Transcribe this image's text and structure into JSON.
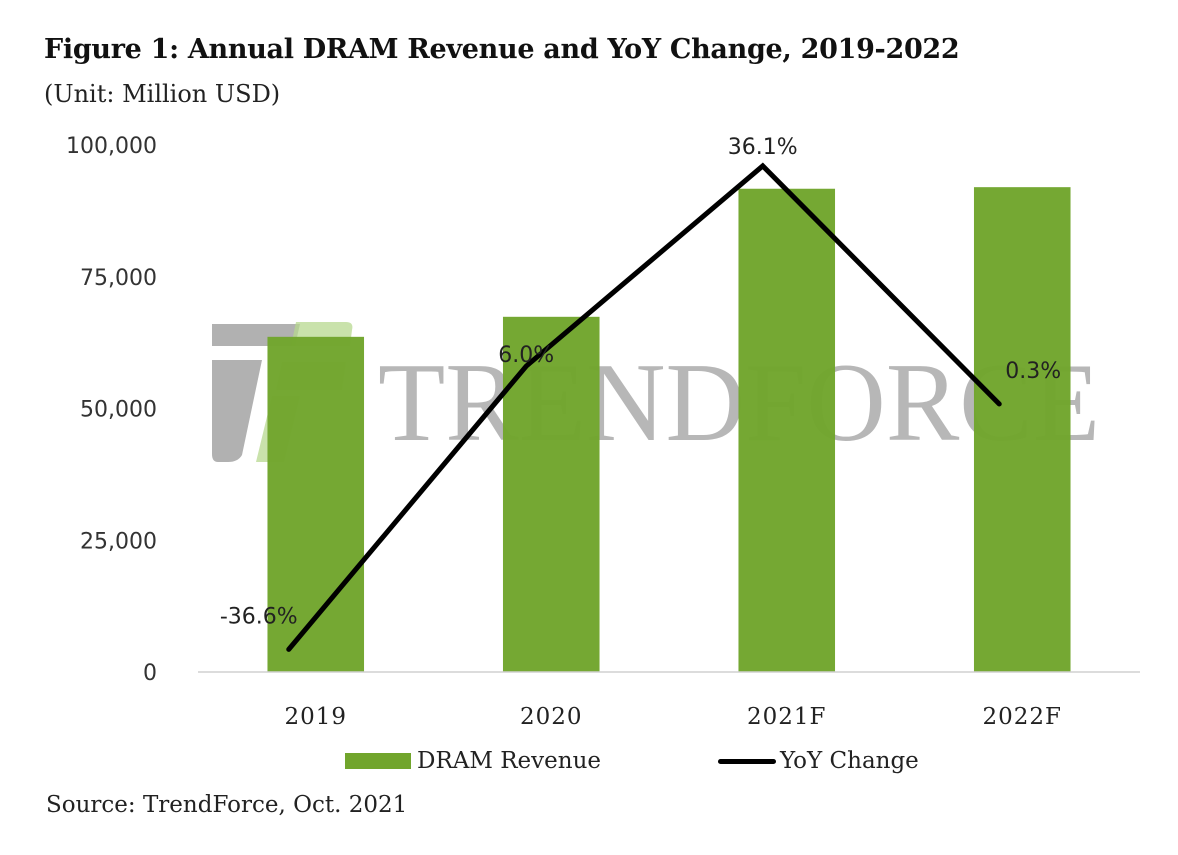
{
  "chart_data": {
    "type": "bar",
    "title": "Figure 1: Annual DRAM Revenue and YoY Change, 2019-2022",
    "subtitle": "(Unit: Million USD)",
    "categories": [
      "2019",
      "2020",
      "2021F",
      "2022F"
    ],
    "series": [
      {
        "name": "DRAM Revenue",
        "type": "bar",
        "axis": "primary",
        "color": "#71a52c",
        "values": [
          63600,
          67400,
          91700,
          92000
        ]
      },
      {
        "name": "YoY Change",
        "type": "line",
        "axis": "secondary",
        "color": "#000000",
        "values": [
          -36.6,
          6.0,
          36.1,
          0.3
        ],
        "data_labels": [
          "-36.6%",
          "6.0%",
          "36.1%",
          "0.3%"
        ]
      }
    ],
    "ylim": [
      0,
      100000
    ],
    "yticks": [
      0,
      25000,
      50000,
      75000,
      100000
    ],
    "ytick_labels": [
      "0",
      "25,000",
      "50,000",
      "75,000",
      "100,000"
    ],
    "y2lim": [
      -40,
      40
    ],
    "y2_visible": false,
    "xlabel": "",
    "ylabel": "",
    "grid": false,
    "legend": {
      "placement": "bottom-center",
      "entries": [
        "DRAM Revenue",
        "YoY Change"
      ]
    },
    "source": "Source: TrendForce, Oct. 2021",
    "watermark": "TRENDFORCE"
  }
}
